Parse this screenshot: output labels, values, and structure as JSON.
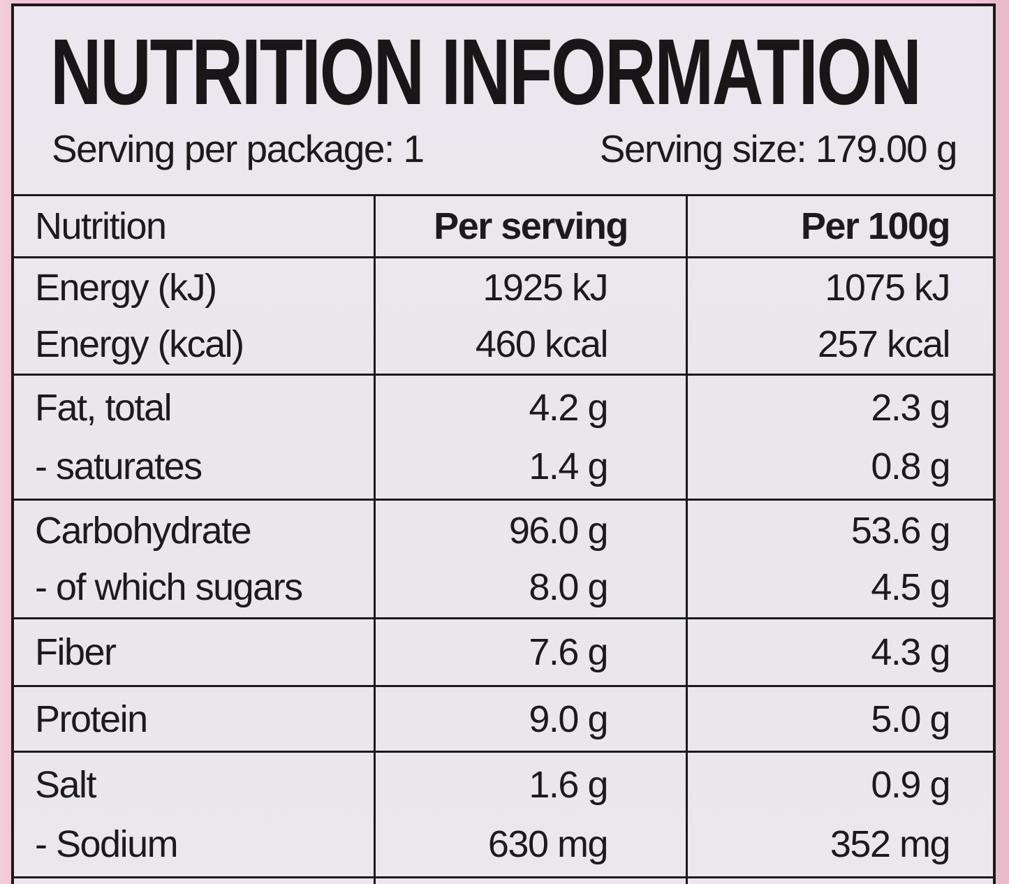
{
  "colors": {
    "surround_pink": "#eec3d2",
    "label_background": "#e9e6ec",
    "text_black": "#1d1a1c"
  },
  "header": {
    "title": "NUTRITION INFORMATION",
    "serving_per_package": "Serving per package: 1",
    "serving_size": "Serving size: 179.00 g"
  },
  "table": {
    "columns": [
      "Nutrition",
      "Per serving",
      "Per 100g"
    ],
    "groups": [
      {
        "rows": [
          {
            "label": "Energy (kJ)",
            "per_serving": "1925 kJ",
            "per_100g": "1075 kJ"
          },
          {
            "label": "Energy (kcal)",
            "per_serving": "460 kcal",
            "per_100g": "257 kcal"
          }
        ]
      },
      {
        "rows": [
          {
            "label": "Fat, total",
            "per_serving": "4.2 g",
            "per_100g": "2.3 g"
          },
          {
            "label": "- saturates",
            "per_serving": "1.4 g",
            "per_100g": "0.8 g"
          }
        ]
      },
      {
        "rows": [
          {
            "label": "Carbohydrate",
            "per_serving": "96.0 g",
            "per_100g": "53.6 g"
          },
          {
            "label": "- of which sugars",
            "per_serving": "8.0 g",
            "per_100g": "4.5 g"
          }
        ]
      },
      {
        "rows": [
          {
            "label": "Fiber",
            "per_serving": "7.6 g",
            "per_100g": "4.3 g"
          }
        ]
      },
      {
        "rows": [
          {
            "label": "Protein",
            "per_serving": "9.0 g",
            "per_100g": "5.0 g"
          }
        ]
      },
      {
        "rows": [
          {
            "label": "Salt",
            "per_serving": "1.6 g",
            "per_100g": "0.9 g"
          },
          {
            "label": "- Sodium",
            "per_serving": "630 mg",
            "per_100g": "352 mg"
          }
        ]
      }
    ]
  }
}
